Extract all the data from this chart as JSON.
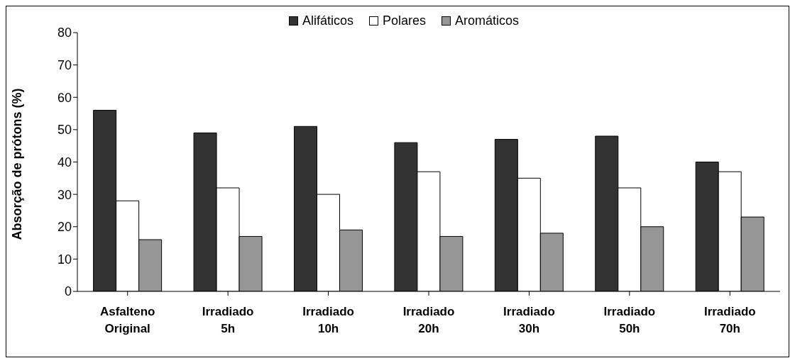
{
  "chart_data": {
    "type": "bar",
    "ylabel": "Absorção de prótons (%)",
    "categories": [
      "Asfalteno Original",
      "Irradiado 5h",
      "Irradiado 10h",
      "Irradiado 20h",
      "Irradiado 30h",
      "Irradiado 50h",
      "Irradiado 70h"
    ],
    "series": [
      {
        "name": "Alifáticos",
        "color": "#333333",
        "values": [
          56,
          49,
          51,
          46,
          47,
          48,
          40
        ]
      },
      {
        "name": "Polares",
        "color": "#ffffff",
        "values": [
          28,
          32,
          30,
          37,
          35,
          32,
          37
        ]
      },
      {
        "name": "Aromáticos",
        "color": "#969696",
        "values": [
          16,
          17,
          19,
          17,
          18,
          20,
          23
        ]
      }
    ],
    "ylim": [
      0,
      80
    ],
    "yticks": [
      0,
      10,
      20,
      30,
      40,
      50,
      60,
      70,
      80
    ],
    "grid": false,
    "legend": "top"
  }
}
